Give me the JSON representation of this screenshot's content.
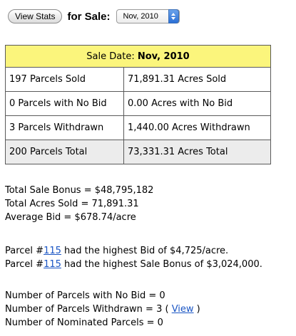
{
  "toolbar": {
    "view_stats_label": "View Stats",
    "for_sale_label": "for Sale:",
    "selected_sale": "Nov, 2010"
  },
  "table": {
    "header_label": "Sale Date:",
    "header_value": "Nov, 2010",
    "rows": [
      {
        "parcels": "197 Parcels Sold",
        "acres": "71,891.31 Acres Sold"
      },
      {
        "parcels": "0 Parcels with No Bid",
        "acres": "0.00 Acres with No Bid"
      },
      {
        "parcels": "3 Parcels Withdrawn",
        "acres": "1,440.00 Acres Withdrawn"
      },
      {
        "parcels": "200 Parcels Total",
        "acres": "73,331.31 Acres Total"
      }
    ]
  },
  "summary": {
    "total_bonus": "Total Sale Bonus = $48,795,182",
    "total_acres": "Total Acres Sold = 71,891.31",
    "average_bid": "Average Bid = $678.74/acre"
  },
  "highest": {
    "bid_prefix": "Parcel #",
    "bid_parcel": "115",
    "bid_suffix": " had the highest Bid of $4,725/acre.",
    "bonus_prefix": "Parcel #",
    "bonus_parcel": "115",
    "bonus_suffix": " had the highest Sale Bonus of $3,024,000."
  },
  "counts": {
    "no_bid": "Number of Parcels with No Bid = 0",
    "withdrawn_prefix": "Number of Parcels Withdrawn = 3 ( ",
    "withdrawn_link": "View",
    "withdrawn_suffix": " )",
    "nominated": "Number of Nominated Parcels = 0"
  }
}
